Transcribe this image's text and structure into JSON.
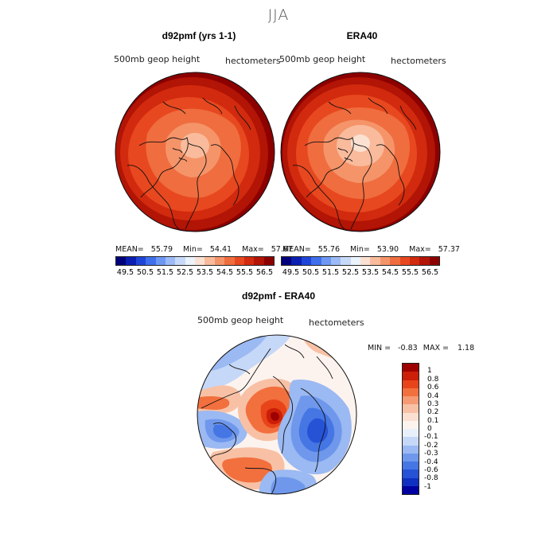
{
  "figure_title": "JJA",
  "panels": [
    {
      "title": "d92pmf (yrs 1-1)",
      "variable": "500mb geop height",
      "units": "hectometers",
      "stats": {
        "mean_label": "MEAN=",
        "mean": "55.79",
        "min_label": "Min=",
        "min": "54.41",
        "max_label": "Max=",
        "max": "57.67"
      }
    },
    {
      "title": "ERA40",
      "variable": "500mb geop height",
      "units": "hectometers",
      "stats": {
        "mean_label": "MEAN=",
        "mean": "55.76",
        "min_label": "Min=",
        "min": "53.90",
        "max_label": "Max=",
        "max": "57.37"
      }
    },
    {
      "title": "d92pmf - ERA40",
      "variable": "500mb geop height",
      "units": "hectometers",
      "stats": {
        "min_label": "MIN =",
        "min": "-0.83",
        "max_label": "MAX =",
        "max": "1.18"
      }
    }
  ],
  "height_colorbar": {
    "labels": [
      "49.5",
      "50.5",
      "51.5",
      "52.5",
      "53.5",
      "54.5",
      "55.5",
      "56.5"
    ],
    "colors": [
      "#00007a",
      "#0a1fb0",
      "#1f45d8",
      "#3f6fec",
      "#6d97f2",
      "#9bbaf6",
      "#c8daf9",
      "#ebf3fc",
      "#fbe1d2",
      "#f9bb9c",
      "#f59469",
      "#ef6d3f",
      "#e8481f",
      "#d22a0e",
      "#b21405",
      "#8c0000"
    ]
  },
  "diff_colorbar": {
    "labels": [
      "1",
      "0.8",
      "0.6",
      "0.4",
      "0.3",
      "0.2",
      "0.1",
      "0",
      "-0.1",
      "-0.2",
      "-0.3",
      "-0.4",
      "-0.6",
      "-0.8",
      "-1"
    ],
    "colors": [
      "#9e0000",
      "#cc1f08",
      "#e8441a",
      "#f2703e",
      "#f59a73",
      "#f8c1a5",
      "#fbe0d2",
      "#fdf3ee",
      "#e8f0fc",
      "#c6d8f7",
      "#9bb9f2",
      "#6f98ec",
      "#4576e4",
      "#2652d6",
      "#1030c4",
      "#0000a0"
    ]
  }
}
